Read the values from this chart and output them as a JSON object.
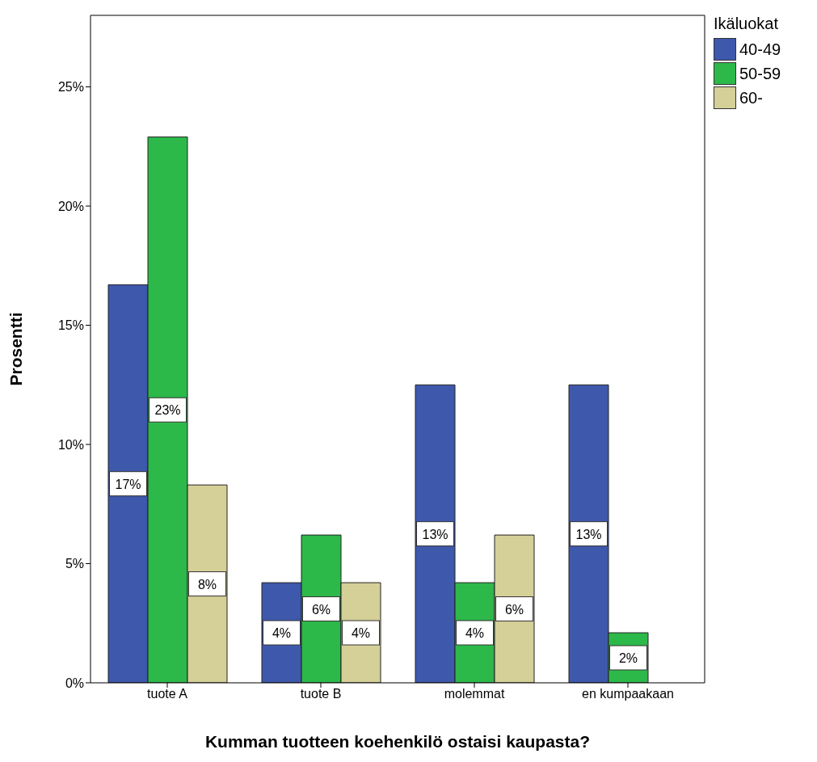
{
  "chart_data": {
    "type": "bar",
    "xlabel": "Kumman tuotteen koehenkilö ostaisi kaupasta?",
    "ylabel": "Prosentti",
    "legend_title": "Ikäluokat",
    "legend": "right",
    "categories": [
      "tuote A",
      "tuote B",
      "molemmat",
      "en kumpaakaan"
    ],
    "series": [
      {
        "name": "40-49",
        "color": "#3e58ac",
        "values": [
          16.7,
          4.2,
          12.5,
          12.5
        ],
        "value_labels": [
          "17%",
          "4%",
          "13%",
          "13%"
        ]
      },
      {
        "name": "50-59",
        "color": "#2db84a",
        "values": [
          22.9,
          6.2,
          4.2,
          2.1
        ],
        "value_labels": [
          "23%",
          "6%",
          "4%",
          "2%"
        ]
      },
      {
        "name": "60-",
        "color": "#d5cf98",
        "values": [
          8.3,
          4.2,
          6.2,
          null
        ],
        "value_labels": [
          "8%",
          "4%",
          "6%",
          null
        ]
      }
    ],
    "ylim": [
      0,
      28
    ],
    "yticks": [
      {
        "value": 0,
        "label": "0%"
      },
      {
        "value": 5,
        "label": "5%"
      },
      {
        "value": 10,
        "label": "10%"
      },
      {
        "value": 15,
        "label": "15%"
      },
      {
        "value": 20,
        "label": "20%"
      },
      {
        "value": 25,
        "label": "25%"
      }
    ]
  }
}
